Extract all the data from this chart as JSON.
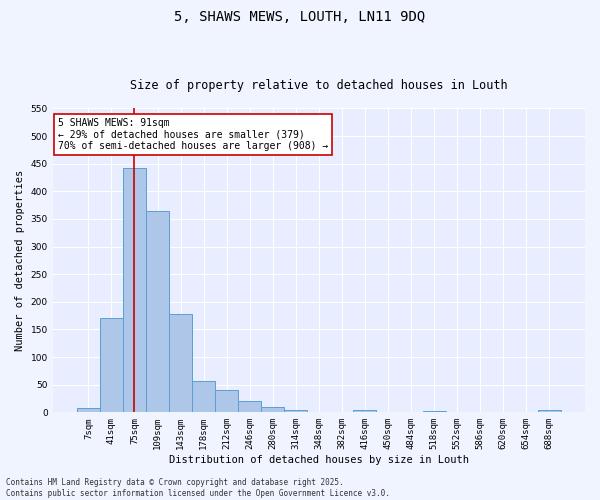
{
  "title_line1": "5, SHAWS MEWS, LOUTH, LN11 9DQ",
  "title_line2": "Size of property relative to detached houses in Louth",
  "xlabel": "Distribution of detached houses by size in Louth",
  "ylabel": "Number of detached properties",
  "categories": [
    "7sqm",
    "41sqm",
    "75sqm",
    "109sqm",
    "143sqm",
    "178sqm",
    "212sqm",
    "246sqm",
    "280sqm",
    "314sqm",
    "348sqm",
    "382sqm",
    "416sqm",
    "450sqm",
    "484sqm",
    "518sqm",
    "552sqm",
    "586sqm",
    "620sqm",
    "654sqm",
    "688sqm"
  ],
  "values": [
    8,
    171,
    443,
    365,
    178,
    57,
    40,
    21,
    10,
    5,
    0,
    0,
    4,
    0,
    0,
    3,
    0,
    0,
    0,
    0,
    4
  ],
  "bar_color": "#aec6e8",
  "bar_edge_color": "#5a9fd4",
  "vline_x": 2,
  "vline_color": "#cc0000",
  "annotation_text": "5 SHAWS MEWS: 91sqm\n← 29% of detached houses are smaller (379)\n70% of semi-detached houses are larger (908) →",
  "annotation_box_color": "#ffffff",
  "annotation_box_edge": "#cc0000",
  "ylim": [
    0,
    550
  ],
  "yticks": [
    0,
    50,
    100,
    150,
    200,
    250,
    300,
    350,
    400,
    450,
    500,
    550
  ],
  "background_color": "#e8eeff",
  "grid_color": "#ffffff",
  "footer_line1": "Contains HM Land Registry data © Crown copyright and database right 2025.",
  "footer_line2": "Contains public sector information licensed under the Open Government Licence v3.0.",
  "title_fontsize": 10,
  "subtitle_fontsize": 8.5,
  "axis_label_fontsize": 7.5,
  "tick_fontsize": 6.5,
  "annotation_fontsize": 7,
  "footer_fontsize": 5.5
}
